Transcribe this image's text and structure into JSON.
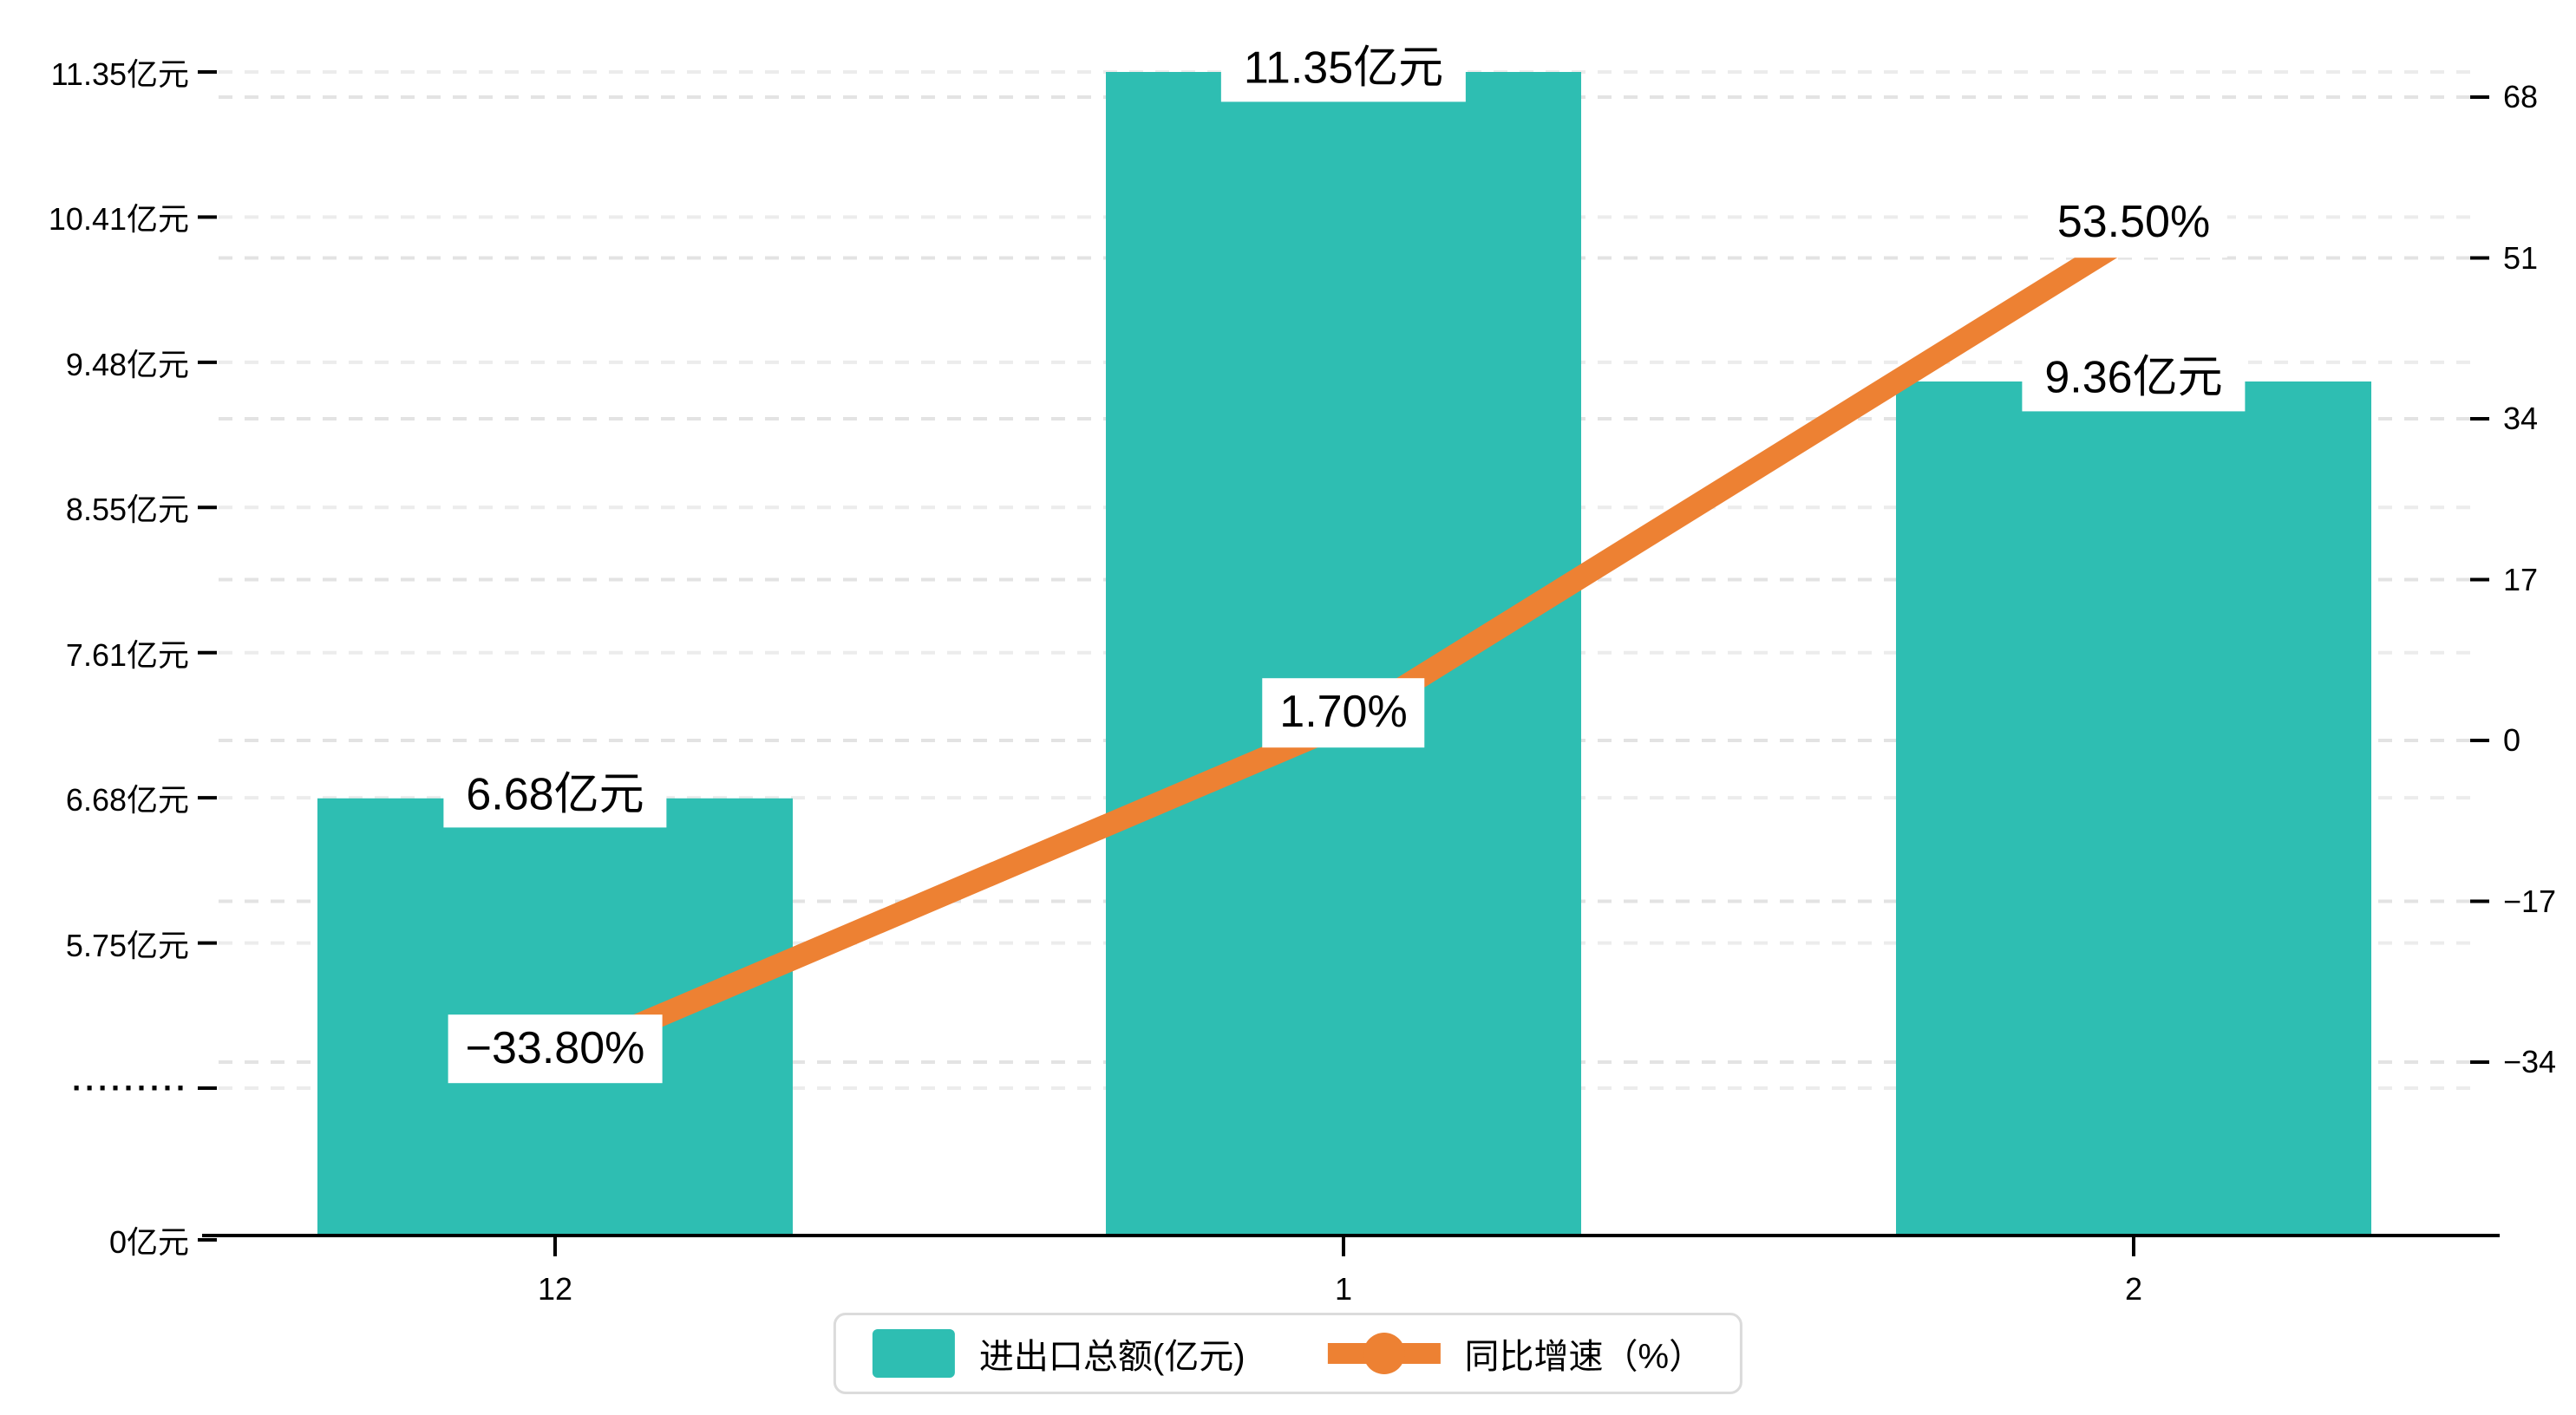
{
  "chart_data": {
    "type": "bar+line",
    "categories": [
      "12",
      "1",
      "2"
    ],
    "series": [
      {
        "name": "进出口总额(亿元)",
        "type": "bar",
        "values": [
          6.68,
          11.35,
          9.36
        ],
        "labels": [
          "6.68亿元",
          "11.35亿元",
          "9.36亿元"
        ],
        "color": "#2EBEB2"
      },
      {
        "name": "同比增速（%）",
        "type": "line",
        "values": [
          -33.8,
          1.7,
          53.5
        ],
        "labels": [
          "−33.80%",
          "1.70%",
          "53.50%"
        ],
        "color": "#ED8133"
      }
    ],
    "left_axis": {
      "unit": "亿元",
      "tick_labels_top_down": [
        "11.35亿元",
        "10.41亿元",
        "9.48亿元",
        "8.55亿元",
        "7.61亿元",
        "6.68亿元",
        "5.75亿元",
        "·········",
        "0亿元"
      ],
      "top_value": 11.35,
      "step_value": 0.9333,
      "has_axis_break": true
    },
    "right_axis": {
      "unit": "%",
      "tick_labels_top_down": [
        "68",
        "51",
        "34",
        "17",
        "0",
        "−17",
        "−34"
      ],
      "top_value": 68,
      "step_value": 17
    },
    "legend": [
      {
        "label": "进出口总额(亿元)",
        "type": "bar",
        "color": "#2EBEB2"
      },
      {
        "label": "同比增速（%）",
        "type": "line",
        "color": "#ED8133"
      }
    ],
    "grid": true,
    "legend_position": "bottom",
    "title": ""
  },
  "colors": {
    "bar": "#2EBEB2",
    "line": "#ED8133",
    "axis_line": "#000000",
    "grid_left": "#ECECEC",
    "grid_right": "#E3E3E3",
    "text": "#000000",
    "legend_border": "#DBDBDB",
    "background": "#FFFFFF"
  }
}
